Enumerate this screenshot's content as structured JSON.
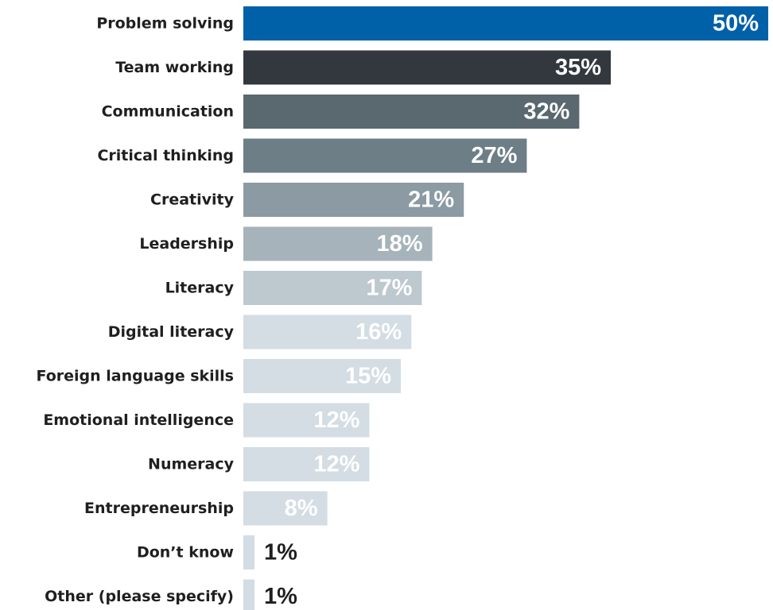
{
  "chart_data": {
    "type": "bar",
    "orientation": "horizontal",
    "categories": [
      "Problem solving",
      "Team working",
      "Communication",
      "Critical thinking",
      "Creativity",
      "Leadership",
      "Literacy",
      "Digital literacy",
      "Foreign language skills",
      "Emotional intelligence",
      "Numeracy",
      "Entrepreneurship",
      "Don’t know",
      "Other (please specify)"
    ],
    "values": [
      50,
      35,
      32,
      27,
      21,
      18,
      17,
      16,
      15,
      12,
      12,
      8,
      1,
      1
    ],
    "value_labels": [
      "50%",
      "35%",
      "32%",
      "27%",
      "21%",
      "18%",
      "17%",
      "16%",
      "15%",
      "12%",
      "12%",
      "8%",
      "1%",
      "1%"
    ],
    "title": "",
    "xlabel": "",
    "ylabel": "",
    "xlim": [
      0,
      50
    ],
    "grid": false,
    "legend": "none",
    "colors": [
      "#0060a8",
      "#33383f",
      "#5a6870",
      "#6d7e87",
      "#8b9aa3",
      "#a6b3bb",
      "#bdc8cf",
      "#d3dde3",
      "#d3dde3",
      "#d3dde3",
      "#d3dde3",
      "#d3dde3",
      "#d3dde3",
      "#d3dde3"
    ],
    "label_colors": [
      "#ffffff",
      "#ffffff",
      "#ffffff",
      "#ffffff",
      "#ffffff",
      "#ffffff",
      "#ffffff",
      "#ffffff",
      "#ffffff",
      "#ffffff",
      "#ffffff",
      "#ffffff",
      "#1f1f1f",
      "#1f1f1f"
    ]
  }
}
